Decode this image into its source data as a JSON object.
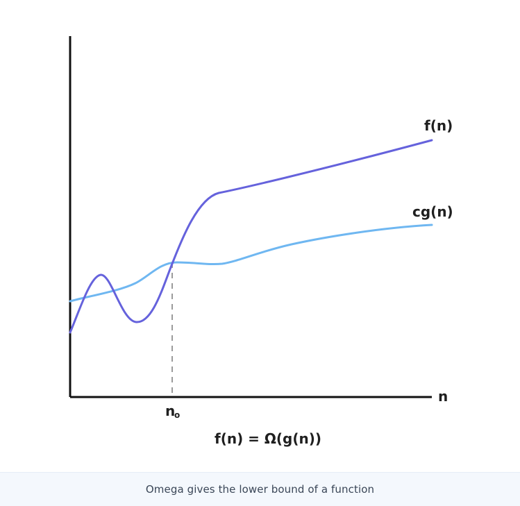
{
  "diagram": {
    "labels": {
      "f_label": "f(n)",
      "cg_label": "cg(n)",
      "n_axis": "n",
      "n0_main": "n",
      "n0_sub": "o",
      "formula": "f(n) = Ω(g(n))"
    },
    "colors": {
      "f_curve": "#6562dc",
      "cg_curve": "#6fb7f1",
      "axis": "#111111",
      "dashed": "#9a9a9a"
    }
  },
  "caption": "Omega gives the lower bound of a function"
}
